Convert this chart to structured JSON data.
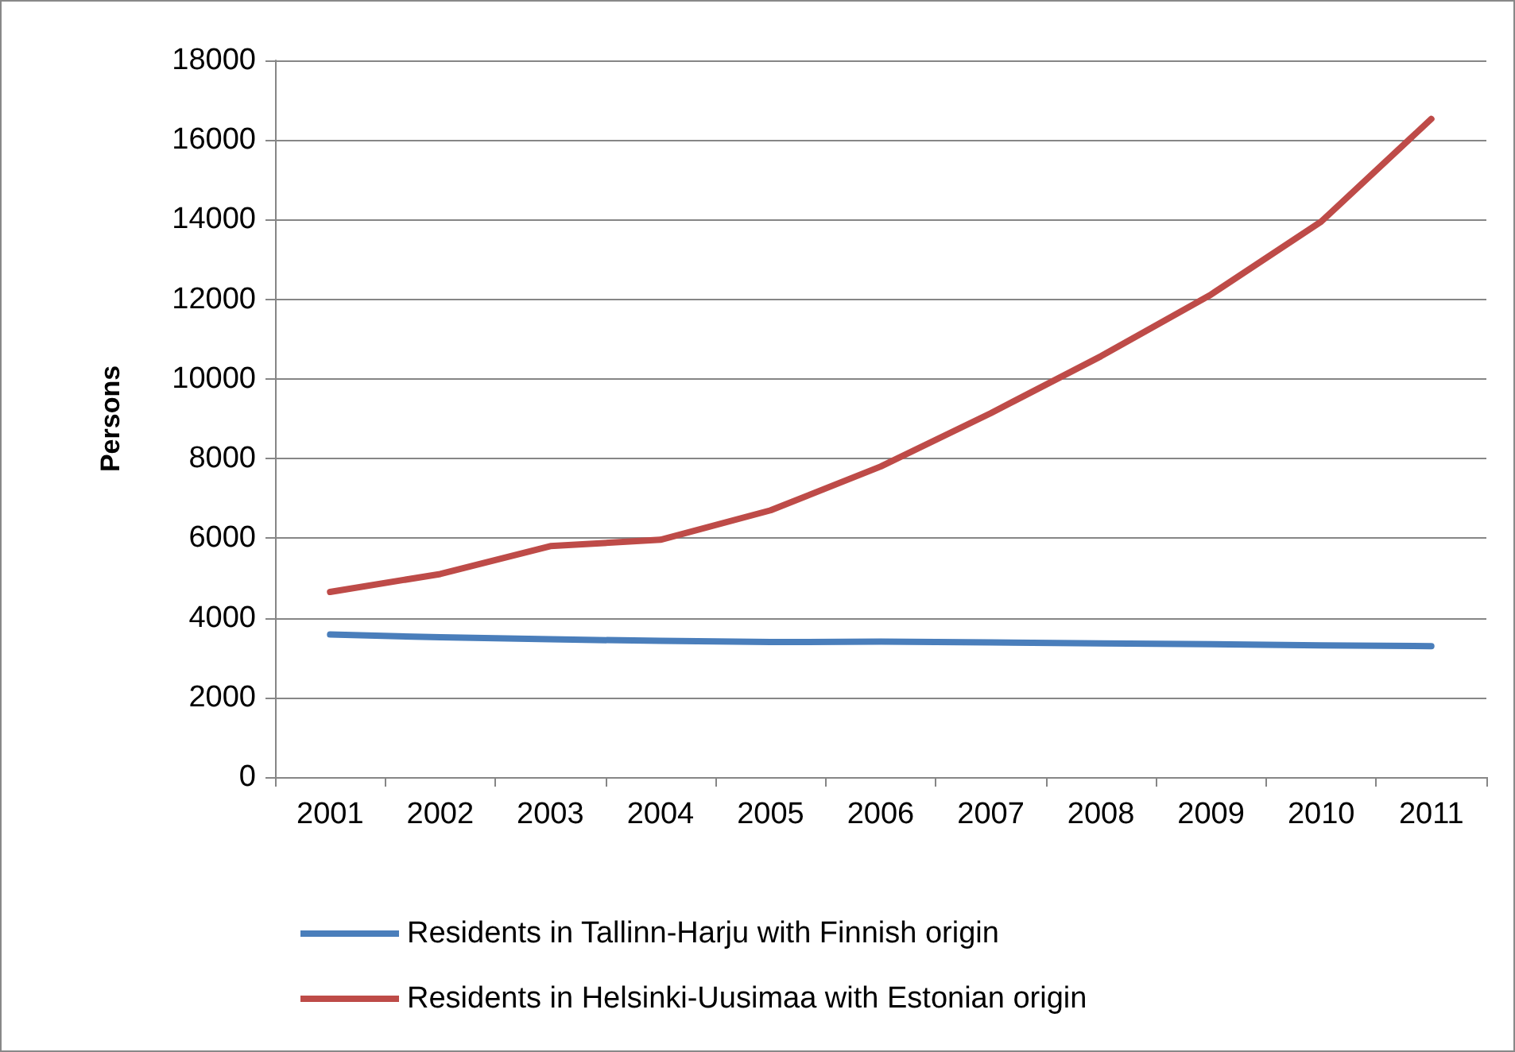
{
  "chart_data": {
    "type": "line",
    "ylabel": "Persons",
    "categories": [
      "2001",
      "2002",
      "2003",
      "2004",
      "2005",
      "2006",
      "2007",
      "2008",
      "2009",
      "2010",
      "2011"
    ],
    "series": [
      {
        "name": "Residents in Tallinn-Harju with Finnish origin",
        "color": "#4a7ebb",
        "values": [
          3580,
          3510,
          3460,
          3420,
          3390,
          3400,
          3380,
          3360,
          3340,
          3310,
          3290
        ]
      },
      {
        "name": "Residents in Helsinki-Uusimaa with Estonian origin",
        "color": "#be4b48",
        "values": [
          4650,
          5100,
          5800,
          5960,
          6700,
          7800,
          9140,
          10570,
          12120,
          13950,
          16530
        ]
      }
    ],
    "ylim": [
      0,
      18000
    ],
    "yticks": [
      0,
      2000,
      4000,
      6000,
      8000,
      10000,
      12000,
      14000,
      16000,
      18000
    ],
    "grid": "y",
    "legend": "bottom",
    "marker": "none",
    "line_style": "solid"
  }
}
